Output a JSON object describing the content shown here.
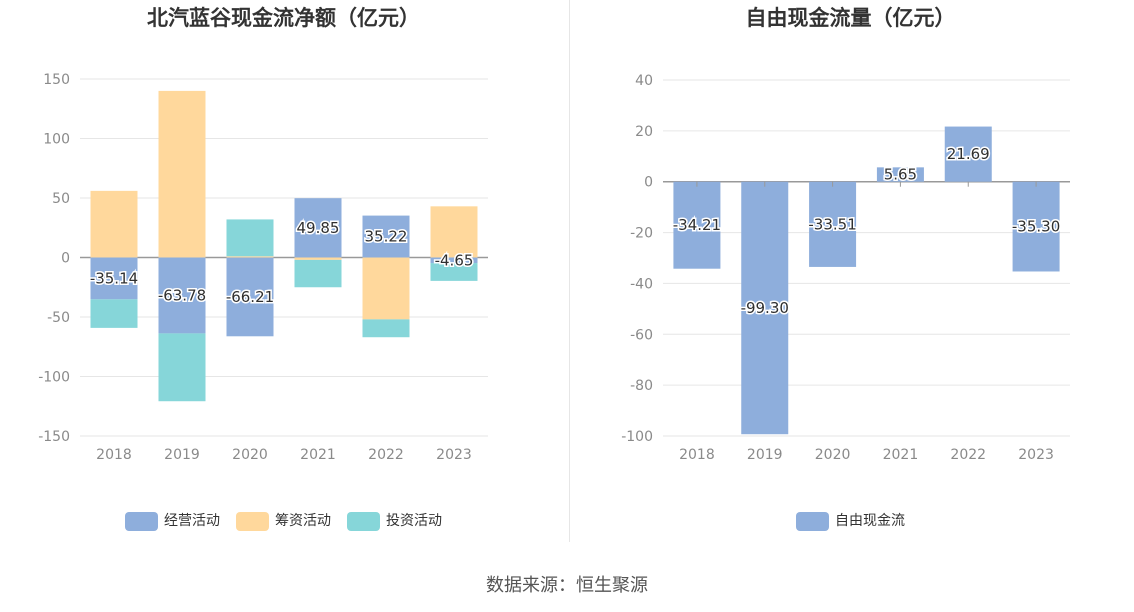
{
  "source_text": "数据来源：恒生聚源",
  "chart_data": [
    {
      "type": "bar",
      "stacked": true,
      "title": "北汽蓝谷现金流净额（亿元）",
      "categories": [
        "2018",
        "2019",
        "2020",
        "2021",
        "2022",
        "2023"
      ],
      "ylim": [
        -150,
        150
      ],
      "yticks": [
        150,
        100,
        50,
        0,
        -50,
        -100,
        -150
      ],
      "grid": true,
      "legend_position": "bottom",
      "series": [
        {
          "name": "经营活动",
          "color": "#8eaedc",
          "values": [
            -35.14,
            -63.78,
            -66.21,
            49.85,
            35.22,
            -4.65
          ],
          "show_labels": true
        },
        {
          "name": "筹资活动",
          "color": "#ffd89c",
          "values": [
            56,
            140,
            1,
            -2,
            -52,
            43
          ],
          "show_labels": false
        },
        {
          "name": "投资活动",
          "color": "#86d6d9",
          "values": [
            -24,
            -57,
            31,
            -23,
            -15,
            -15
          ],
          "show_labels": false
        }
      ],
      "data_labels": [
        "-35.14",
        "-63.78",
        "-66.21",
        "49.85",
        "35.22",
        "-4.65"
      ]
    },
    {
      "type": "bar",
      "title": "自由现金流量（亿元）",
      "categories": [
        "2018",
        "2019",
        "2020",
        "2021",
        "2022",
        "2023"
      ],
      "ylim": [
        -100,
        40
      ],
      "yticks": [
        40,
        20,
        0,
        -20,
        -40,
        -60,
        -80,
        -100
      ],
      "grid": true,
      "legend_position": "bottom",
      "series": [
        {
          "name": "自由现金流",
          "color": "#8eaedc",
          "values": [
            -34.21,
            -99.3,
            -33.51,
            5.65,
            21.69,
            -35.3
          ],
          "show_labels": true
        }
      ],
      "data_labels": [
        "-34.21",
        "-99.30",
        "-33.51",
        "5.65",
        "21.69",
        "-35.30"
      ]
    }
  ]
}
